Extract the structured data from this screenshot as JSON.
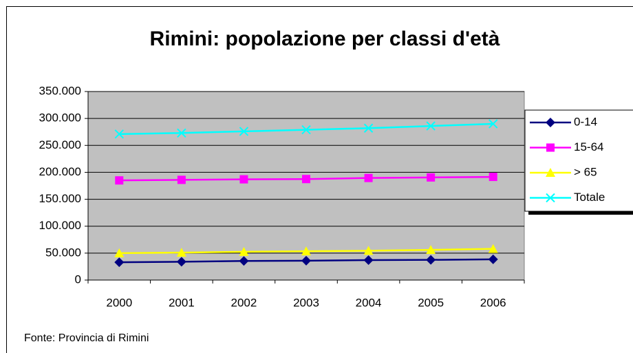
{
  "chart_data": {
    "type": "line",
    "title": "Rimini: popolazione per classi d'età",
    "source": "Fonte: Provincia di Rimini",
    "categories": [
      "2000",
      "2001",
      "2002",
      "2003",
      "2004",
      "2005",
      "2006"
    ],
    "series": [
      {
        "name": "0-14",
        "color": "#000080",
        "marker": "diamond",
        "values": [
          33000,
          34000,
          35500,
          36000,
          37000,
          37500,
          38500
        ]
      },
      {
        "name": "15-64",
        "color": "#ff00ff",
        "marker": "square",
        "values": [
          185000,
          186000,
          187000,
          187500,
          189500,
          190500,
          191500
        ]
      },
      {
        "name": "> 65",
        "color": "#ffff00",
        "marker": "triangle",
        "values": [
          50000,
          51000,
          52500,
          53500,
          54500,
          56000,
          58000
        ]
      },
      {
        "name": "Totale",
        "color": "#00ffff",
        "marker": "x",
        "values": [
          271000,
          273000,
          276000,
          279000,
          282000,
          286000,
          290000
        ]
      }
    ],
    "ylim": [
      0,
      350000
    ],
    "yticks": [
      0,
      {
        "value": 50000,
        "label": "50.000"
      },
      {
        "value": 100000,
        "label": "100.000"
      },
      {
        "value": 150000,
        "label": "150.000"
      },
      {
        "value": 200000,
        "label": "200.000"
      },
      {
        "value": 250000,
        "label": "250.000"
      },
      {
        "value": 300000,
        "label": "300.000"
      },
      {
        "value": 350000,
        "label": "350.000"
      }
    ],
    "grid": true,
    "legend": "right",
    "plot_background": "#c0c0c0"
  }
}
